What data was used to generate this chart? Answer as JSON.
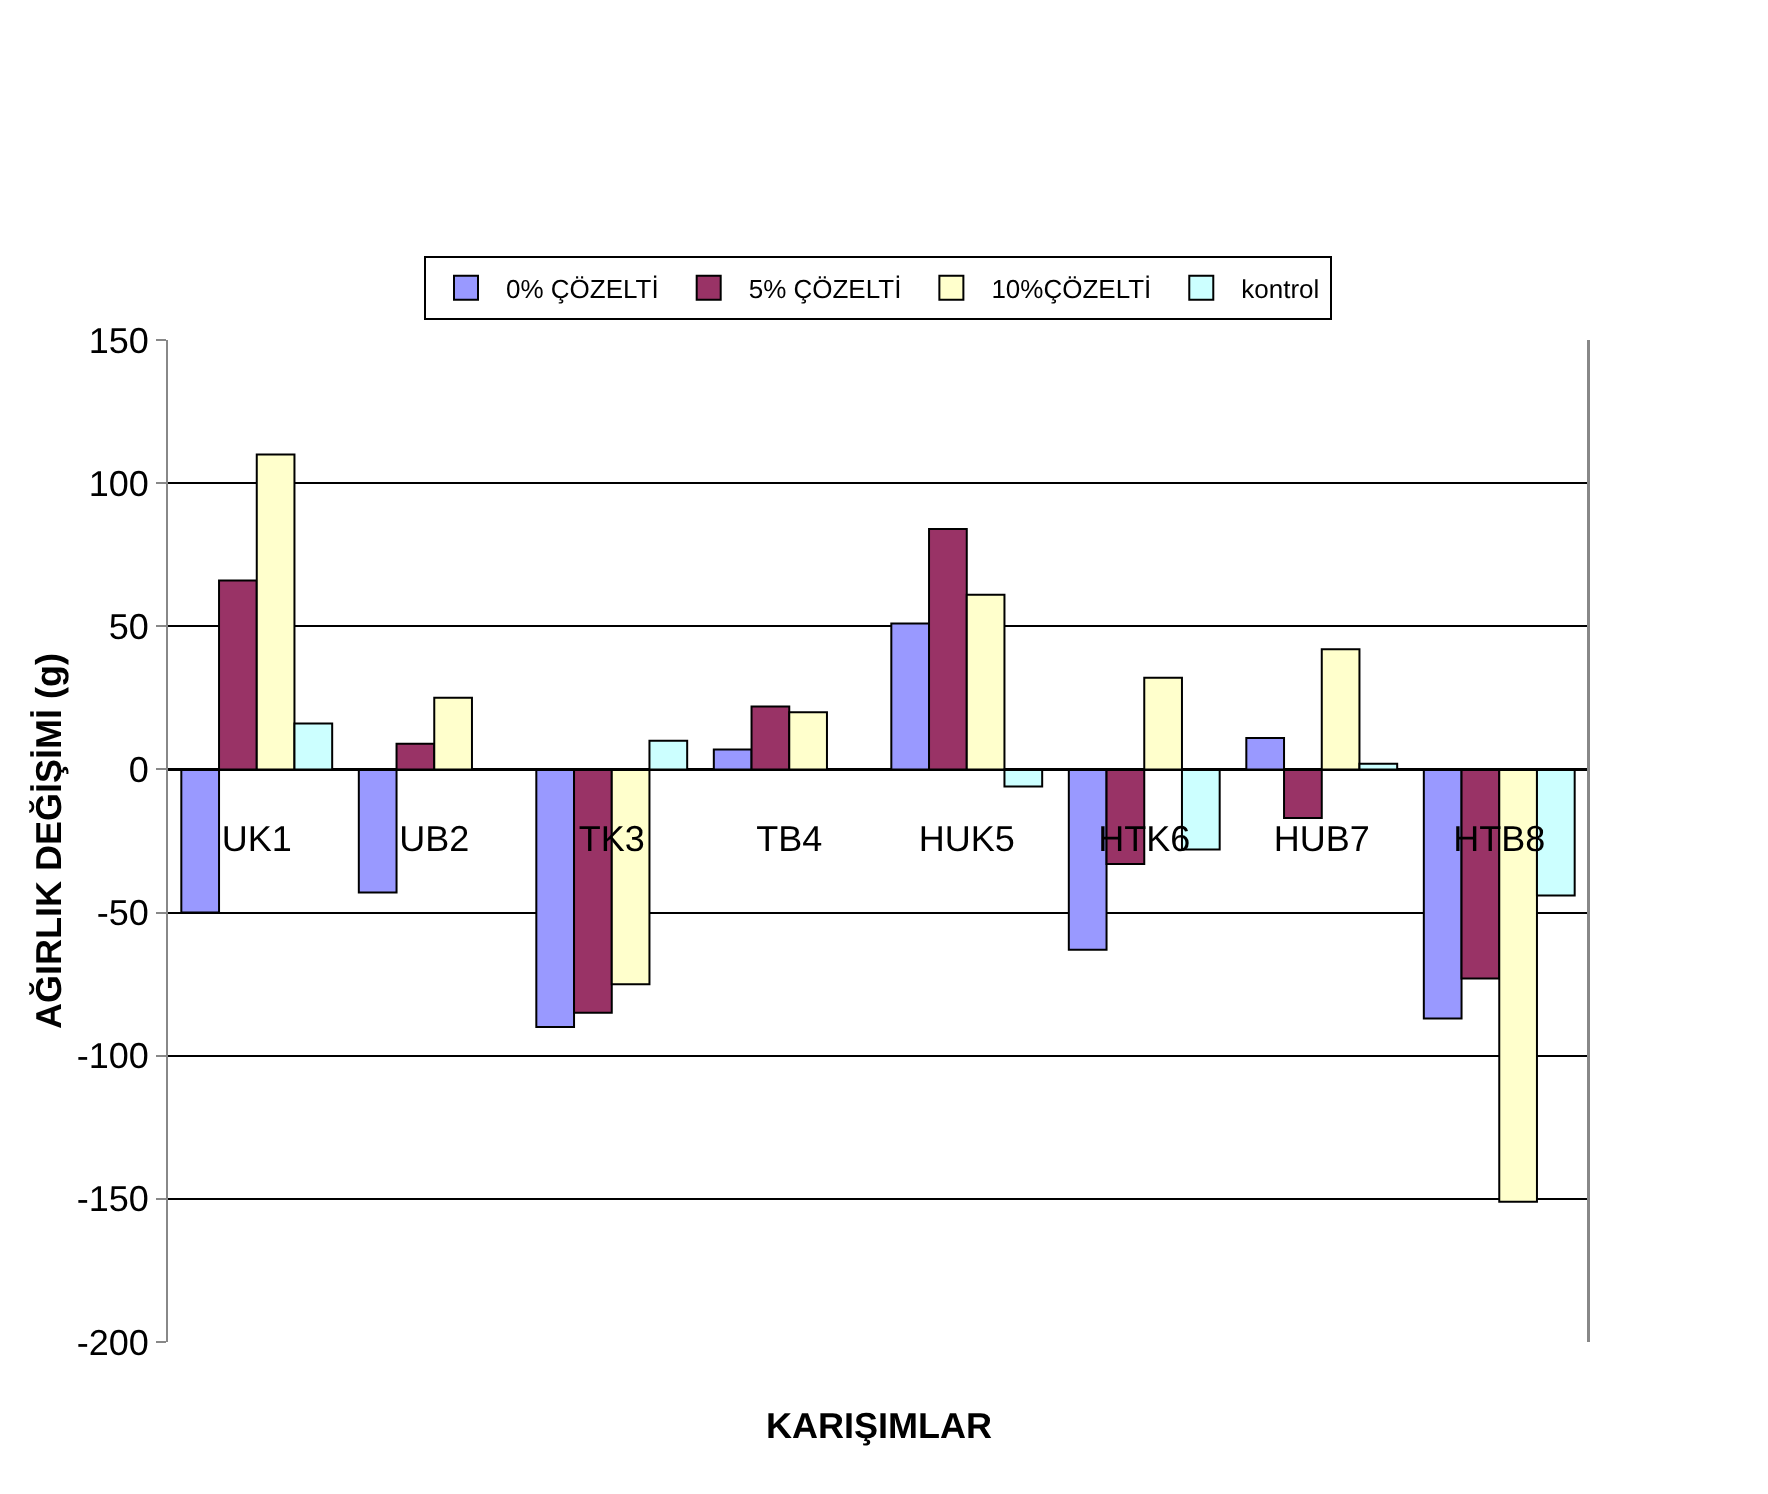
{
  "chart_data": {
    "type": "bar",
    "xlabel": "KARIŞIMLAR",
    "ylabel": "AĞIRLIK DEĞİŞİMİ (g)",
    "categories": [
      "UK1",
      "UB2",
      "TK3",
      "TB4",
      "HUK5",
      "HTK6",
      "HUB7",
      "HTB8"
    ],
    "series": [
      {
        "name": "0% ÇÖZELTİ",
        "color": "#9999ff",
        "values": [
          -50,
          -43,
          -90,
          7,
          51,
          -63,
          11,
          -87
        ]
      },
      {
        "name": "5% ÇÖZELTİ",
        "color": "#993366",
        "values": [
          66,
          9,
          -85,
          22,
          84,
          -33,
          -17,
          -73
        ]
      },
      {
        "name": "10%ÇÖZELTİ",
        "color": "#ffffcc",
        "values": [
          110,
          25,
          -75,
          20,
          61,
          32,
          42,
          -151
        ]
      },
      {
        "name": "kontrol",
        "color": "#ccffff",
        "values": [
          16,
          null,
          10,
          null,
          -6,
          -28,
          2,
          -44
        ]
      }
    ],
    "ylim": [
      -200,
      150
    ],
    "yticks": [
      -200,
      -150,
      -100,
      -50,
      0,
      50,
      100,
      150
    ],
    "grid": "y",
    "legend": "top"
  }
}
